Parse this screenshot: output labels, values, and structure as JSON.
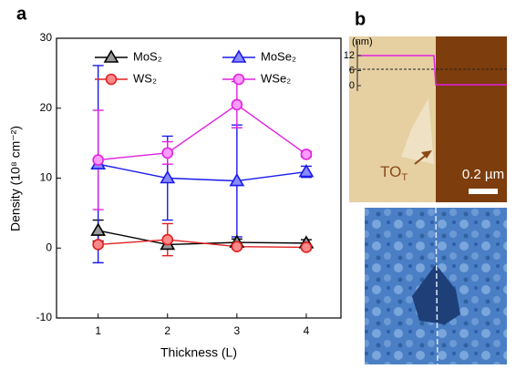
{
  "chart_data": {
    "type": "line",
    "panel_label": "a",
    "x_label": "Thickness (L)",
    "y_label": "Density (10⁸ cm⁻²)",
    "x": [
      1,
      2,
      3,
      4
    ],
    "xlim": [
      0.4,
      4.5
    ],
    "xticks": [
      1,
      2,
      3,
      4
    ],
    "ylim": [
      -10,
      30
    ],
    "yticks": [
      -10,
      0,
      10,
      20,
      30
    ],
    "series": [
      {
        "name": "MoS₂",
        "color": "#000000",
        "fill": "#9a9a9a",
        "marker": "triangle",
        "values": [
          2.5,
          0.5,
          0.8,
          0.7
        ],
        "errors": [
          1.5,
          0.5,
          0.5,
          0.5
        ]
      },
      {
        "name": "MoSe₂",
        "color": "#1a1aee",
        "fill": "#8a8aff",
        "marker": "triangle",
        "values": [
          12,
          10,
          9.6,
          10.9
        ],
        "errors": [
          14.1,
          6,
          8,
          0.8
        ]
      },
      {
        "name": "WS₂",
        "color": "#e02020",
        "fill": "#ff8a8a",
        "marker": "circle",
        "values": [
          0.5,
          1.2,
          0.2,
          0.1
        ],
        "errors": [
          0.3,
          2.3,
          0.3,
          0.3
        ]
      },
      {
        "name": "WSe₂",
        "color": "#e020e0",
        "fill": "#ff9cff",
        "marker": "circle",
        "values": [
          12.6,
          13.6,
          20.5,
          13.4
        ],
        "errors": [
          7.1,
          1.6,
          3.3,
          0.4
        ]
      }
    ]
  },
  "panel_b": {
    "label": "b",
    "unit": "(nm)",
    "height_ticks": [
      12,
      6,
      0
    ],
    "annotation": {
      "main": "TO",
      "sub": "T"
    },
    "scale_bar": "0.2 µm"
  }
}
